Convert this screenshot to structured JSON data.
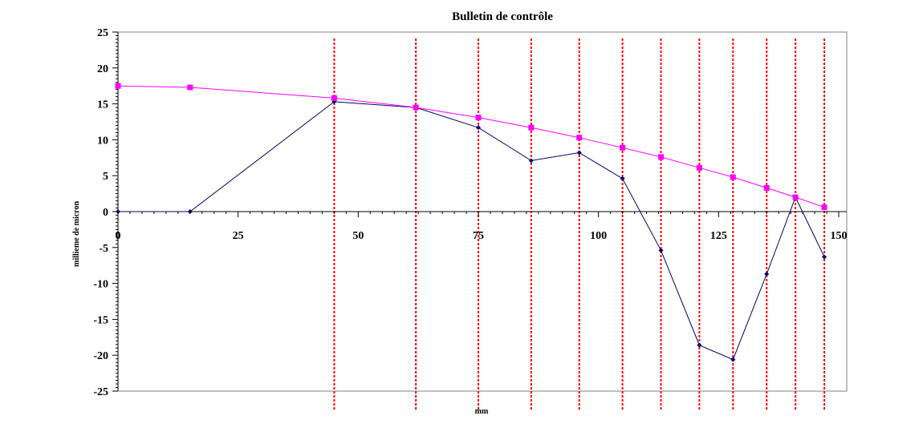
{
  "chart_data": {
    "type": "line",
    "title": "Bulletin de contrôle",
    "xlabel": "mm",
    "ylabel": "millieme de micron",
    "xlim": [
      0,
      150
    ],
    "ylim": [
      -25,
      25
    ],
    "x_ticks": [
      0,
      25,
      50,
      75,
      100,
      125,
      150
    ],
    "y_ticks": [
      25,
      20,
      15,
      10,
      5,
      0,
      -5,
      -10,
      -15,
      -20,
      -25
    ],
    "x_tick_labels": [
      "0",
      "25",
      "50",
      "75",
      "100",
      "125",
      "150"
    ],
    "y_tick_labels": [
      "25",
      "20",
      "15",
      "10",
      "5",
      "0",
      "-5",
      "-10",
      "-15",
      "-20",
      "-25"
    ],
    "grid": false,
    "series": [
      {
        "color": "#000066",
        "marker": "diamond",
        "points": [
          [
            0,
            0
          ],
          [
            15,
            0
          ],
          [
            45,
            15.3
          ],
          [
            62,
            14.5
          ],
          [
            75,
            11.7
          ],
          [
            86,
            7.1
          ],
          [
            96,
            8.2
          ],
          [
            105,
            4.6
          ],
          [
            113,
            -5.4
          ],
          [
            121,
            -18.6
          ],
          [
            128,
            -20.6
          ],
          [
            135,
            -8.7
          ],
          [
            141,
            2
          ],
          [
            147,
            -6.3
          ]
        ]
      },
      {
        "color": "#ff00ff",
        "marker": "square",
        "points": [
          [
            0,
            17.5
          ],
          [
            15,
            17.3
          ],
          [
            45,
            15.8
          ],
          [
            62,
            14.5
          ],
          [
            75,
            13.1
          ],
          [
            86,
            11.7
          ],
          [
            96,
            10.3
          ],
          [
            105,
            8.9
          ],
          [
            113,
            7.6
          ],
          [
            121,
            6.1
          ],
          [
            128,
            4.8
          ],
          [
            135,
            3.3
          ],
          [
            141,
            2
          ],
          [
            147,
            0.6
          ]
        ]
      }
    ],
    "vertical_markers": {
      "color": "#ff0000",
      "style": "dotted",
      "x": [
        45,
        62,
        75,
        86,
        96,
        105,
        113,
        121,
        128,
        135,
        141,
        147
      ]
    }
  }
}
